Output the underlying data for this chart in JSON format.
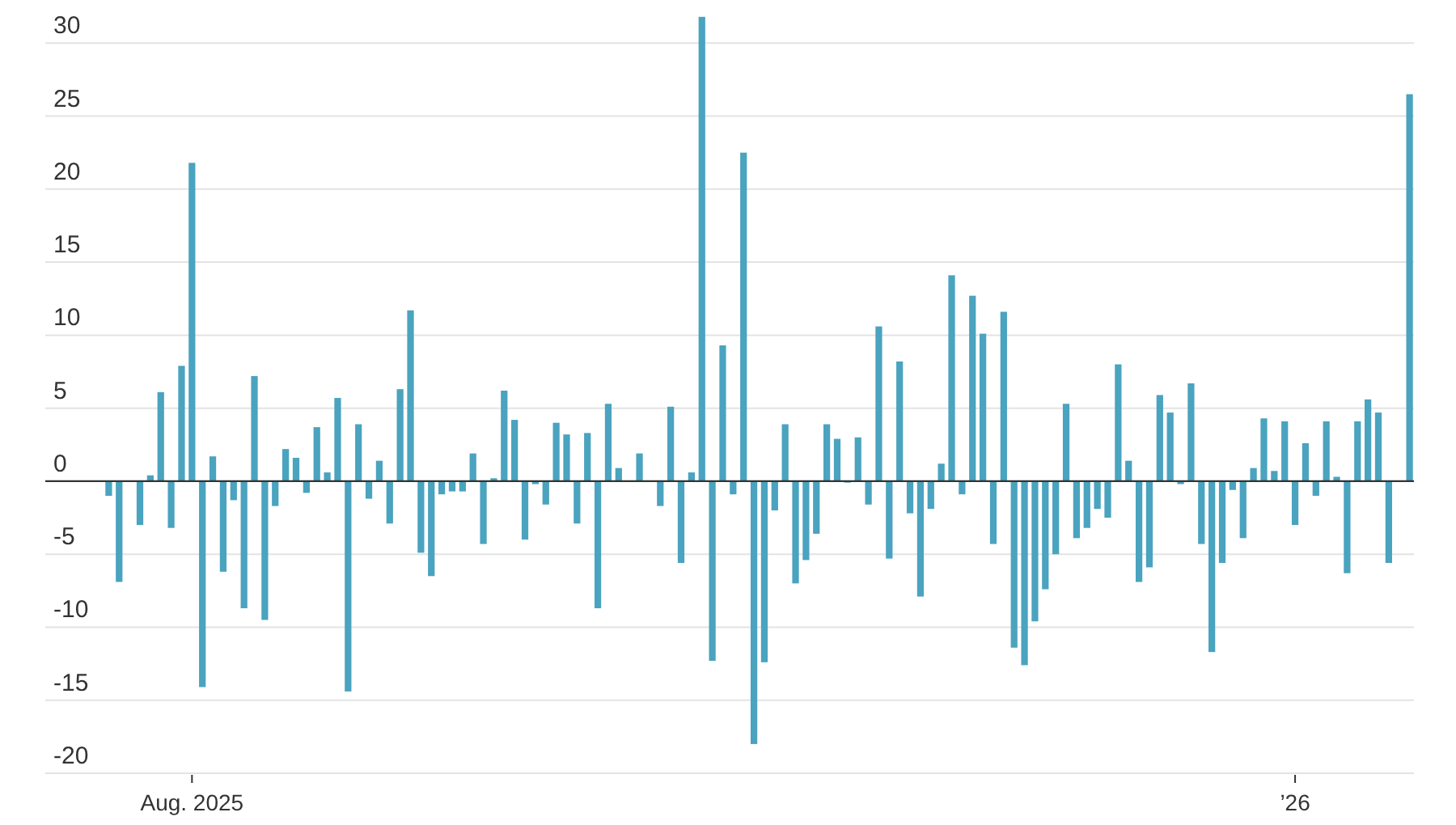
{
  "chart_data": {
    "type": "bar",
    "categories": [
      null,
      null,
      null,
      null,
      null,
      null,
      null,
      null,
      "Aug. 2025",
      null,
      null,
      null,
      null,
      null,
      null,
      null,
      null,
      null,
      null,
      null,
      null,
      null,
      null,
      null,
      null,
      null,
      null,
      null,
      null,
      null,
      null,
      null,
      null,
      null,
      null,
      null,
      null,
      null,
      null,
      null,
      null,
      null,
      null,
      null,
      null,
      null,
      null,
      null,
      null,
      null,
      null,
      null,
      null,
      null,
      null,
      null,
      null,
      null,
      null,
      null,
      null,
      null,
      null,
      null,
      null,
      null,
      null,
      null,
      null,
      null,
      null,
      null,
      null,
      null,
      null,
      null,
      null,
      null,
      null,
      null,
      null,
      null,
      null,
      null,
      null,
      null,
      null,
      null,
      null,
      null,
      null,
      null,
      null,
      null,
      null,
      null,
      null,
      null,
      null,
      null,
      null,
      null,
      null,
      null,
      null,
      null,
      null,
      null,
      null,
      null,
      null,
      null,
      null,
      null,
      "’26",
      null,
      null,
      null,
      null,
      null,
      null,
      null,
      null,
      null,
      null,
      null
    ],
    "values": [
      -1.0,
      -6.9,
      0,
      -3.0,
      0.4,
      6.1,
      -3.2,
      7.9,
      21.8,
      -14.1,
      1.7,
      -6.2,
      -1.3,
      -8.7,
      7.2,
      -9.5,
      -1.7,
      2.2,
      1.6,
      -0.8,
      3.7,
      0.6,
      5.7,
      -14.4,
      3.9,
      -1.2,
      1.4,
      -2.9,
      6.3,
      11.7,
      -4.9,
      -6.5,
      -0.9,
      -0.7,
      -0.7,
      1.9,
      -4.3,
      0.2,
      6.2,
      4.2,
      -4.0,
      -0.2,
      -1.6,
      4.0,
      3.2,
      -2.9,
      3.3,
      -8.7,
      5.3,
      0.9,
      0,
      1.9,
      0,
      -1.7,
      5.1,
      -5.6,
      0.6,
      31.8,
      -12.3,
      9.3,
      -0.9,
      22.5,
      -18.0,
      -12.4,
      -2.0,
      3.9,
      -7.0,
      -5.4,
      -3.6,
      3.9,
      2.9,
      -0.1,
      3.0,
      -1.6,
      10.6,
      -5.3,
      8.2,
      -2.2,
      -7.9,
      -1.9,
      1.2,
      14.1,
      -0.9,
      12.7,
      10.1,
      -4.3,
      11.6,
      -11.4,
      -12.6,
      -9.6,
      -7.4,
      -5.0,
      5.3,
      -3.9,
      -3.2,
      -1.9,
      -2.5,
      8.0,
      1.4,
      -6.9,
      -5.9,
      5.9,
      4.7,
      -0.2,
      6.7,
      -4.3,
      -11.7,
      -5.6,
      -0.6,
      -3.9,
      0.9,
      4.3,
      0.7,
      4.1,
      -3.0,
      2.6,
      -1.0,
      4.1,
      0.3,
      -6.3,
      4.1,
      5.6,
      4.7,
      -5.6,
      0,
      26.5
    ],
    "color": "#4aa3bf",
    "ylim": [
      -20,
      32
    ],
    "yticks": [
      -20,
      -15,
      -10,
      -5,
      0,
      5,
      10,
      15,
      20,
      25,
      30
    ],
    "grid": "y"
  }
}
